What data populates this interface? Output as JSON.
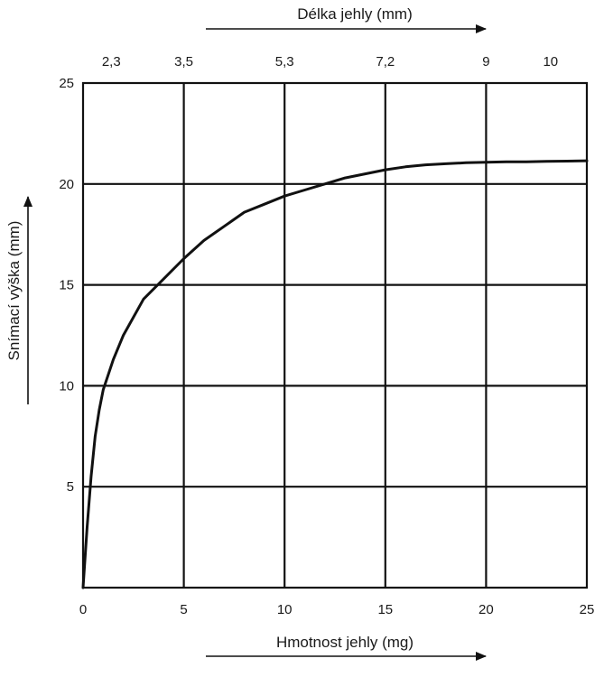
{
  "chart_data": {
    "type": "line",
    "title": "",
    "xlabel": "Hmotnost jehly (mg)",
    "ylabel": "Snímací výška (mm)",
    "top_xlabel": "Délka jehly (mm)",
    "xlim": [
      0,
      25
    ],
    "ylim": [
      0,
      25
    ],
    "x_ticks": [
      0,
      5,
      10,
      15,
      20,
      25
    ],
    "x_tick_labels": [
      "0",
      "5",
      "10",
      "15",
      "20",
      "25"
    ],
    "y_ticks": [
      5,
      10,
      15,
      20,
      25
    ],
    "y_tick_labels": [
      "5",
      "10",
      "15",
      "20",
      "25"
    ],
    "top_ticks": [
      {
        "x": 1.4,
        "label": "2,3"
      },
      {
        "x": 5.0,
        "label": "3,5"
      },
      {
        "x": 10.0,
        "label": "5,3"
      },
      {
        "x": 15.0,
        "label": "7,2"
      },
      {
        "x": 20.0,
        "label": "9"
      },
      {
        "x": 23.2,
        "label": "10"
      }
    ],
    "grid": true,
    "series": [
      {
        "x": [
          0,
          0.2,
          0.4,
          0.6,
          0.8,
          1.0,
          1.5,
          2,
          3,
          4,
          5,
          6,
          7,
          8,
          9,
          10,
          11,
          12,
          13,
          14,
          15,
          16,
          17,
          18,
          19,
          20,
          21,
          22,
          23,
          24,
          25
        ],
        "y": [
          0,
          3.0,
          5.5,
          7.5,
          8.8,
          9.8,
          11.3,
          12.5,
          14.3,
          15.3,
          16.3,
          17.2,
          17.9,
          18.6,
          19.0,
          19.4,
          19.7,
          20.0,
          20.3,
          20.5,
          20.7,
          20.85,
          20.95,
          21.0,
          21.05,
          21.08,
          21.1,
          21.1,
          21.12,
          21.13,
          21.15
        ],
        "color": "#111111"
      }
    ]
  }
}
